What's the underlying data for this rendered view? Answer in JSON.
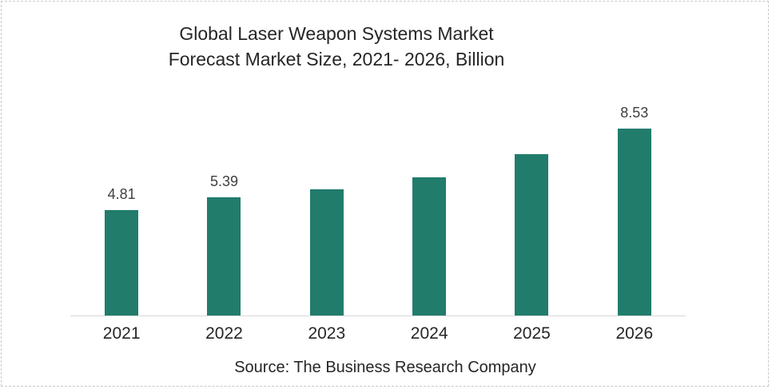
{
  "chart_data": {
    "type": "bar",
    "title": "Global Laser Weapon Systems Market Forecast Market Size, 2021- 2026, Billion",
    "title_lines": [
      "Global Laser Weapon Systems Market",
      "Forecast Market Size, 2021- 2026, Billion"
    ],
    "categories": [
      "2021",
      "2022",
      "2023",
      "2024",
      "2025",
      "2026"
    ],
    "values": [
      4.81,
      5.39,
      5.76,
      6.3,
      7.36,
      8.53
    ],
    "data_labels": [
      "4.81",
      "5.39",
      "",
      "",
      "",
      "8.53"
    ],
    "xlabel": "",
    "ylabel": "",
    "ylim": [
      0,
      9.8
    ],
    "gridlines": false,
    "legend": "none",
    "bar_color": "#217C6C",
    "axis_line_color": "#D9D9D9",
    "text_color": "#262626",
    "source": "Source: The Business Research Company"
  }
}
